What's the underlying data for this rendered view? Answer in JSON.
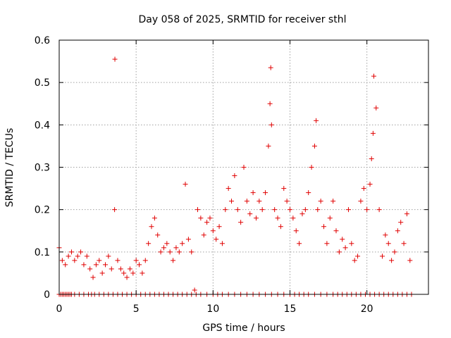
{
  "chart_data": {
    "type": "scatter",
    "title": "Day 058 of 2025, SRMTID for receiver sthl",
    "xlabel": "GPS time / hours",
    "ylabel": "SRMTID / TECUs",
    "xlim": [
      0,
      24
    ],
    "ylim": [
      0,
      0.6
    ],
    "xticks": [
      0,
      5,
      10,
      15,
      20
    ],
    "xtick_labels": [
      "0",
      "5",
      "10",
      "15",
      "20"
    ],
    "yticks": [
      0,
      0.1,
      0.2,
      0.3,
      0.4,
      0.5,
      0.6
    ],
    "ytick_labels": [
      "0",
      "0.1",
      "0.2",
      "0.3",
      "0.4",
      "0.5",
      "0.6"
    ],
    "grid": true,
    "marker": "+",
    "series": [
      {
        "name": "SRMTID",
        "color": "#e00000",
        "x": [
          0.0,
          0.2,
          0.4,
          0.6,
          0.8,
          1.0,
          1.2,
          1.4,
          1.6,
          1.8,
          2.0,
          2.2,
          2.4,
          2.6,
          2.8,
          3.0,
          3.2,
          3.4,
          3.6,
          3.62,
          3.8,
          4.0,
          4.2,
          4.4,
          4.6,
          4.8,
          5.0,
          5.2,
          5.4,
          5.6,
          5.8,
          6.0,
          6.2,
          6.4,
          6.6,
          6.8,
          7.0,
          7.2,
          7.4,
          7.6,
          7.8,
          8.0,
          8.2,
          8.4,
          8.6,
          8.8,
          9.0,
          9.2,
          9.4,
          9.6,
          9.8,
          10.0,
          10.2,
          10.4,
          10.6,
          10.8,
          11.0,
          11.2,
          11.4,
          11.6,
          11.8,
          12.0,
          12.2,
          12.4,
          12.6,
          12.8,
          13.0,
          13.2,
          13.4,
          13.6,
          13.7,
          13.75,
          13.8,
          14.0,
          14.2,
          14.4,
          14.6,
          14.8,
          15.0,
          15.2,
          15.4,
          15.6,
          15.8,
          16.0,
          16.2,
          16.4,
          16.6,
          16.7,
          16.8,
          17.0,
          17.2,
          17.4,
          17.6,
          17.8,
          18.0,
          18.2,
          18.4,
          18.6,
          18.8,
          19.0,
          19.2,
          19.4,
          19.6,
          19.8,
          20.0,
          20.2,
          20.3,
          20.4,
          20.45,
          20.6,
          20.8,
          21.0,
          21.2,
          21.4,
          21.6,
          21.8,
          22.0,
          22.2,
          22.4,
          22.6,
          22.8
        ],
        "y": [
          0.11,
          0.08,
          0.07,
          0.09,
          0.1,
          0.08,
          0.09,
          0.1,
          0.07,
          0.09,
          0.06,
          0.04,
          0.07,
          0.08,
          0.05,
          0.07,
          0.09,
          0.06,
          0.2,
          0.555,
          0.08,
          0.06,
          0.05,
          0.04,
          0.06,
          0.05,
          0.08,
          0.07,
          0.05,
          0.08,
          0.12,
          0.16,
          0.18,
          0.14,
          0.1,
          0.11,
          0.12,
          0.1,
          0.08,
          0.11,
          0.1,
          0.12,
          0.26,
          0.13,
          0.1,
          0.01,
          0.2,
          0.18,
          0.14,
          0.17,
          0.18,
          0.15,
          0.13,
          0.16,
          0.12,
          0.2,
          0.25,
          0.22,
          0.28,
          0.2,
          0.17,
          0.3,
          0.22,
          0.19,
          0.24,
          0.18,
          0.22,
          0.2,
          0.24,
          0.35,
          0.45,
          0.535,
          0.4,
          0.2,
          0.18,
          0.16,
          0.25,
          0.22,
          0.2,
          0.18,
          0.15,
          0.12,
          0.19,
          0.2,
          0.24,
          0.3,
          0.35,
          0.41,
          0.2,
          0.22,
          0.16,
          0.12,
          0.18,
          0.22,
          0.15,
          0.1,
          0.13,
          0.11,
          0.2,
          0.12,
          0.08,
          0.09,
          0.22,
          0.25,
          0.2,
          0.26,
          0.32,
          0.38,
          0.515,
          0.44,
          0.2,
          0.09,
          0.14,
          0.12,
          0.08,
          0.1,
          0.15,
          0.17,
          0.12,
          0.19,
          0.08
        ],
        "zero_x": [
          0.0,
          0.1,
          0.2,
          0.3,
          0.4,
          0.5,
          0.6,
          0.7,
          0.8,
          1.0,
          1.3,
          1.6,
          1.9,
          2.1,
          2.3,
          2.6,
          2.9,
          3.2,
          3.5,
          3.8,
          4.1,
          4.4,
          4.7,
          5.0,
          5.3,
          5.6,
          5.9,
          6.2,
          6.5,
          6.8,
          7.1,
          7.4,
          7.7,
          8.0,
          8.3,
          8.6,
          8.9,
          9.2,
          9.6,
          10.0,
          10.3,
          10.6,
          11.0,
          11.4,
          11.8,
          12.2,
          12.6,
          13.0,
          13.4,
          13.8,
          14.2,
          14.6,
          15.0,
          15.3,
          15.6,
          15.9,
          16.2,
          16.6,
          17.0,
          17.4,
          17.8,
          18.1,
          18.4,
          18.7,
          19.0,
          19.3,
          19.6,
          19.9,
          20.2,
          20.5,
          20.8,
          21.1,
          21.4,
          21.7,
          22.0,
          22.3,
          22.6,
          22.9
        ]
      }
    ]
  }
}
